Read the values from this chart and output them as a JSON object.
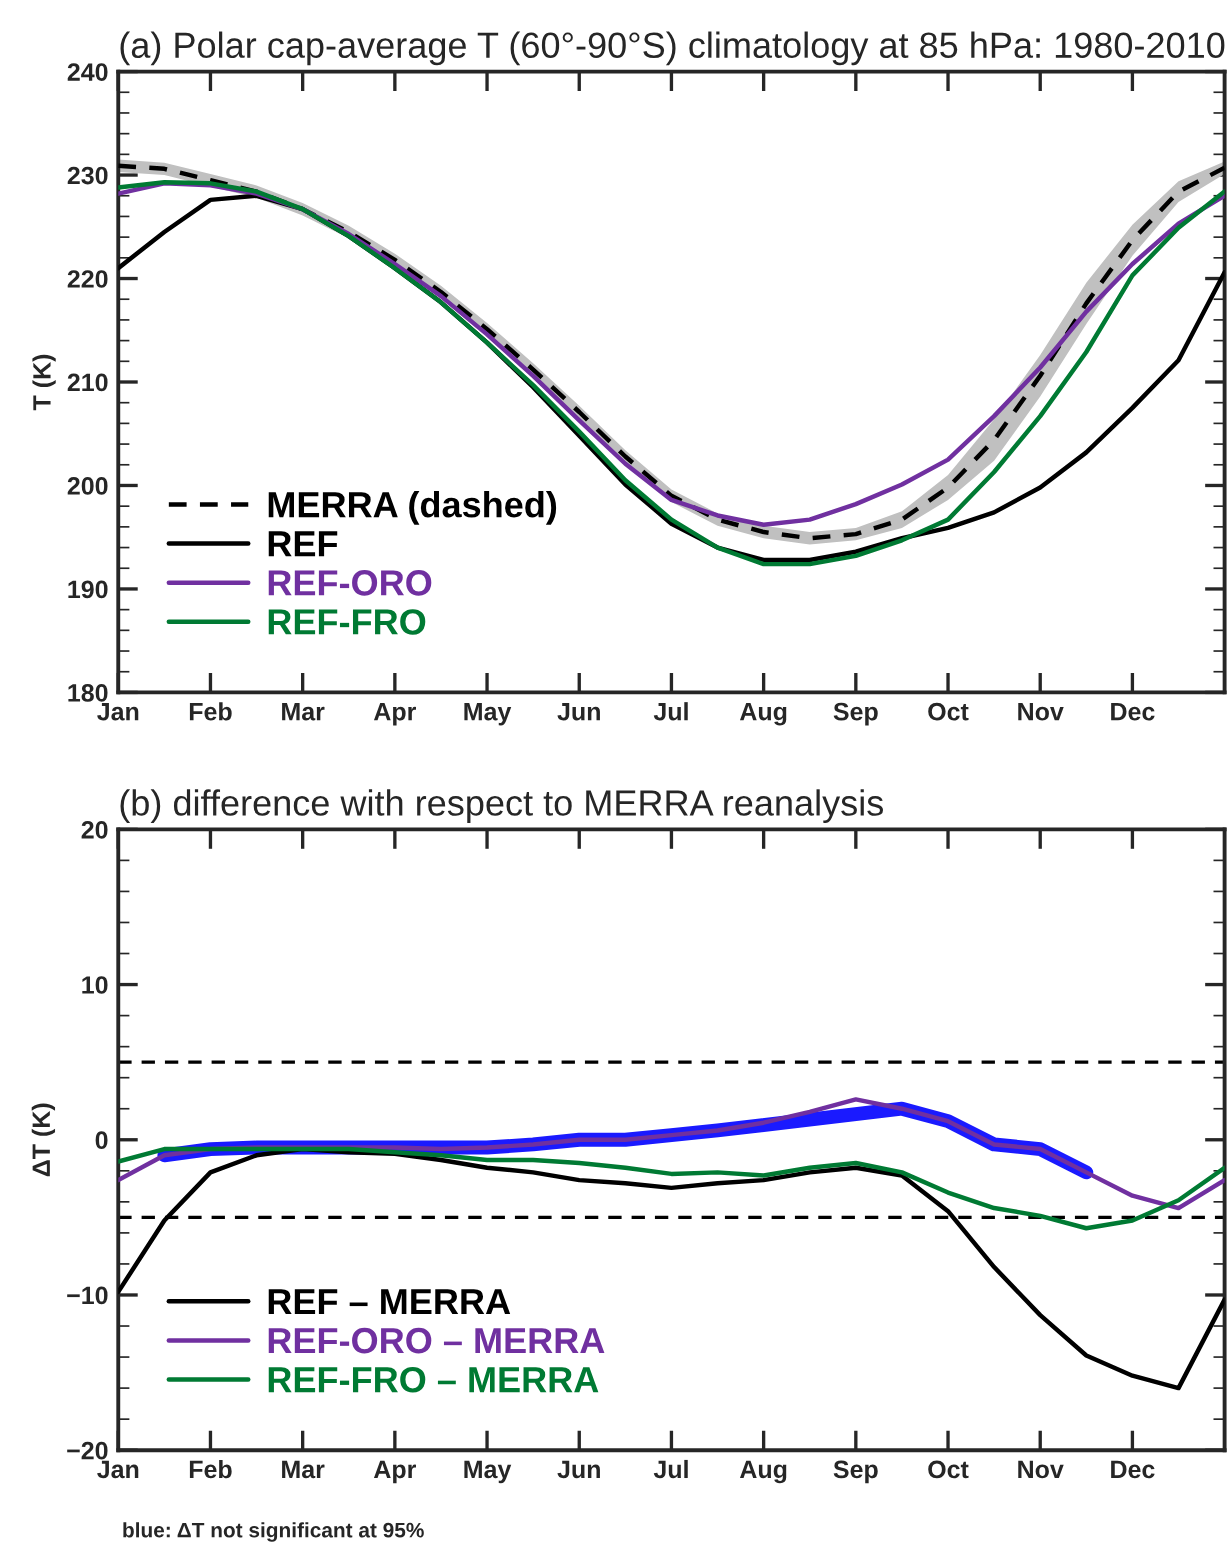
{
  "chart_data": [
    {
      "type": "line",
      "title": "(a) Polar cap-average T (60°-90°S) climatology at 85 hPa: 1980-2010",
      "ylabel": "T (K)",
      "categories": [
        "Jan",
        null,
        "Feb",
        null,
        "Mar",
        null,
        "Apr",
        null,
        "May",
        null,
        "Jun",
        null,
        "Jul",
        null,
        "Aug",
        null,
        "Sep",
        null,
        "Oct",
        null,
        "Nov",
        null,
        "Dec",
        null,
        null
      ],
      "ylim": [
        180,
        240
      ],
      "yticks": [
        180,
        190,
        200,
        210,
        220,
        230,
        240
      ],
      "grid": false,
      "legend": "bottom left",
      "series": [
        {
          "name": "MERRA (dashed)",
          "color": "#000000",
          "line_style": "dashed",
          "values": [
            230.9,
            230.6,
            229.5,
            228.4,
            226.7,
            224.5,
            221.8,
            218.7,
            215.1,
            211.2,
            207.1,
            202.8,
            199.0,
            196.7,
            195.5,
            194.9,
            195.3,
            196.7,
            199.8,
            204.4,
            210.6,
            217.6,
            223.7,
            228.4,
            230.7
          ],
          "lower": [
            230.3,
            230.0,
            228.9,
            227.8,
            226.1,
            223.9,
            221.2,
            218.1,
            214.5,
            210.6,
            206.5,
            202.2,
            198.4,
            196.1,
            194.9,
            194.3,
            194.7,
            195.9,
            198.6,
            202.4,
            208.6,
            215.6,
            222.2,
            227.4,
            230.1
          ],
          "upper": [
            231.5,
            231.2,
            230.1,
            229.0,
            227.3,
            225.1,
            222.4,
            219.3,
            215.7,
            211.8,
            207.7,
            203.4,
            199.6,
            197.3,
            196.1,
            195.5,
            195.9,
            197.5,
            201.0,
            206.4,
            212.6,
            219.6,
            225.2,
            229.4,
            231.3
          ]
        },
        {
          "name": "REF",
          "color": "#000000",
          "values": [
            221.0,
            224.5,
            227.6,
            228.0,
            226.7,
            224.1,
            221.0,
            217.7,
            213.8,
            209.5,
            204.8,
            200.1,
            196.3,
            194.0,
            192.8,
            192.8,
            193.6,
            194.9,
            195.9,
            197.4,
            199.8,
            203.2,
            207.5,
            212.1,
            220.6
          ]
        },
        {
          "name": "REF-ORO",
          "color": "#7030a0",
          "values": [
            228.2,
            229.2,
            229.0,
            228.2,
            226.7,
            224.3,
            221.4,
            218.3,
            214.6,
            210.6,
            206.3,
            202.1,
            198.6,
            197.1,
            196.2,
            196.7,
            198.2,
            200.1,
            202.5,
            206.7,
            211.4,
            216.8,
            221.4,
            225.3,
            228.0
          ]
        },
        {
          "name": "REF-FRO",
          "color": "#007a33",
          "values": [
            228.8,
            229.3,
            229.2,
            228.4,
            226.7,
            224.1,
            221.0,
            217.7,
            213.8,
            209.7,
            205.2,
            200.5,
            196.7,
            194.0,
            192.4,
            192.4,
            193.2,
            194.7,
            196.7,
            201.3,
            206.7,
            212.9,
            220.3,
            224.9,
            228.4
          ]
        }
      ]
    },
    {
      "type": "line",
      "title": "(b) difference with respect to MERRA reanalysis",
      "ylabel": "ΔT (K)",
      "categories": [
        "Jan",
        null,
        "Feb",
        null,
        "Mar",
        null,
        "Apr",
        null,
        "May",
        null,
        "Jun",
        null,
        "Jul",
        null,
        "Aug",
        null,
        "Sep",
        null,
        "Oct",
        null,
        "Nov",
        null,
        "Dec",
        null,
        null
      ],
      "ylim": [
        -20,
        20
      ],
      "yticks": [
        {
          "value": -20,
          "label": "−20"
        },
        {
          "value": -10,
          "label": "−10"
        },
        0,
        10,
        20
      ],
      "grid": false,
      "legend": "bottom left",
      "ref_lines": [
        {
          "axis": "y",
          "value": 5,
          "color": "#000000",
          "line_style": "dashed"
        },
        {
          "axis": "y",
          "value": -5,
          "color": "#000000",
          "line_style": "dashed"
        }
      ],
      "annotations": [
        "blue: ΔT not significant at 95%"
      ],
      "series": [
        {
          "name": "REF – MERRA",
          "color": "#000000",
          "values": [
            -9.8,
            -5.2,
            -2.1,
            -1.0,
            -0.6,
            -0.8,
            -0.9,
            -1.3,
            -1.8,
            -2.1,
            -2.6,
            -2.8,
            -3.1,
            -2.8,
            -2.6,
            -2.1,
            -1.8,
            -2.3,
            -4.6,
            -8.2,
            -11.3,
            -13.9,
            -15.2,
            -16.0,
            -10.3
          ]
        },
        {
          "name": "REF-ORO – MERRA",
          "color": "#7030a0",
          "values": [
            -2.6,
            -1.0,
            -0.6,
            -0.5,
            -0.5,
            -0.5,
            -0.5,
            -0.6,
            -0.5,
            -0.3,
            0.0,
            0.0,
            0.3,
            0.6,
            1.1,
            1.8,
            2.6,
            2.0,
            1.2,
            -0.3,
            -0.6,
            -2.1,
            -3.6,
            -4.4,
            -2.6
          ]
        },
        {
          "name": "REF-FRO – MERRA",
          "color": "#007a33",
          "values": [
            -1.4,
            -0.6,
            -0.6,
            -0.6,
            -0.6,
            -0.6,
            -0.8,
            -1.0,
            -1.3,
            -1.3,
            -1.5,
            -1.8,
            -2.2,
            -2.1,
            -2.3,
            -1.8,
            -1.5,
            -2.1,
            -3.4,
            -4.4,
            -4.9,
            -5.7,
            -5.2,
            -3.9,
            -1.8
          ]
        },
        {
          "color": "#1a1aff",
          "values": [
            null,
            -1.0,
            -0.6,
            -0.5,
            -0.5,
            -0.5,
            -0.5,
            null,
            -0.5,
            -0.3,
            0.0,
            0.0,
            0.3,
            0.6,
            null,
            null,
            null,
            2.0,
            1.2,
            -0.3,
            -0.6,
            -2.1,
            null,
            null,
            null
          ]
        }
      ]
    }
  ]
}
